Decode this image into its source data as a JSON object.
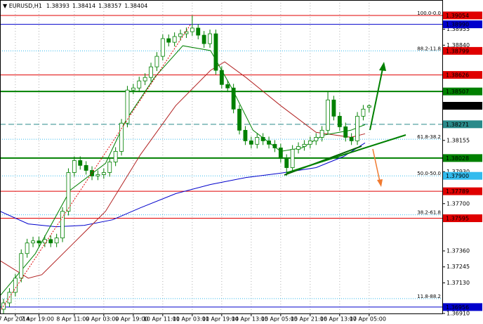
{
  "chart_data": {
    "type": "candlestick",
    "symbol": "EURUSD,H1",
    "xlim": [
      -0.6,
      74.4
    ],
    "ylim": [
      1.3691,
      1.39165
    ],
    "xticks": [
      {
        "value": 2,
        "label": "7 Apr 2014"
      },
      {
        "value": 6,
        "label": "7 Apr 19:00"
      },
      {
        "value": 12,
        "label": "8 Apr 11:00"
      },
      {
        "value": 17,
        "label": "9 Apr 03:00"
      },
      {
        "value": 22,
        "label": "9 Apr 19:00"
      },
      {
        "value": 27,
        "label": "10 Apr 11:00"
      },
      {
        "value": 32,
        "label": "11 Apr 03:00"
      },
      {
        "value": 37,
        "label": "11 Apr 19:00"
      },
      {
        "value": 42,
        "label": "14 Apr 13:00"
      },
      {
        "value": 47,
        "label": "15 Apr 05:00"
      },
      {
        "value": 52,
        "label": "15 Apr 21:00"
      },
      {
        "value": 57,
        "label": "16 Apr 13:00"
      },
      {
        "value": 62,
        "label": "17 Apr 05:00"
      }
    ],
    "yticks": [
      1.38955,
      {
        "value": 1.3884,
        "label": "1.38840"
      },
      1.38155,
      {
        "value": 1.3793,
        "label": "1.37930"
      },
      {
        "value": 1.377,
        "label": "1.37700"
      },
      {
        "value": 1.3736,
        "label": "1.37360"
      },
      1.37245,
      {
        "value": 1.3713,
        "label": "1.37130"
      },
      {
        "value": 1.3691,
        "label": "1.36910"
      }
    ],
    "grid": true,
    "up_color": "#ffffff",
    "down_color": "#008000",
    "wick_color": "#008000",
    "open": [
      1.3694,
      1.36986,
      1.37062,
      1.37164,
      1.37341,
      1.37417,
      1.37432,
      1.37417,
      1.37442,
      1.37417,
      1.37453,
      1.37645,
      1.37924,
      1.3801,
      1.37975,
      1.37939,
      1.37899,
      1.37909,
      1.37924,
      1.38,
      1.38076,
      1.38279,
      1.38517,
      1.38532,
      1.38583,
      1.38608,
      1.38684,
      1.3876,
      1.38887,
      1.38861,
      1.38902,
      1.38922,
      1.38937,
      1.38963,
      1.38912,
      1.38851,
      1.38922,
      1.38659,
      1.38557,
      1.38532,
      1.3838,
      1.38228,
      1.38152,
      1.38127,
      1.38177,
      1.38152,
      1.38127,
      1.38101,
      1.38025,
      1.37959,
      1.38091,
      1.38111,
      1.38127,
      1.38152,
      1.38177,
      1.38228,
      1.38446,
      1.38329,
      1.38253,
      1.38177,
      1.38152,
      1.38329,
      1.38393
    ],
    "high": [
      1.37016,
      1.37092,
      1.37194,
      1.37371,
      1.37447,
      1.37462,
      1.37462,
      1.37472,
      1.37472,
      1.37483,
      1.37675,
      1.37954,
      1.3804,
      1.3804,
      1.38005,
      1.37969,
      1.37939,
      1.37954,
      1.3803,
      1.38106,
      1.38309,
      1.38547,
      1.38562,
      1.38613,
      1.38638,
      1.38714,
      1.3879,
      1.38917,
      1.38917,
      1.38932,
      1.38952,
      1.38967,
      1.39054,
      1.38993,
      1.38942,
      1.38952,
      1.38952,
      1.38689,
      1.38587,
      1.38562,
      1.3841,
      1.38258,
      1.38182,
      1.38207,
      1.38207,
      1.38182,
      1.38157,
      1.38131,
      1.38055,
      1.38121,
      1.38141,
      1.38157,
      1.38182,
      1.38207,
      1.38258,
      1.38507,
      1.38476,
      1.38359,
      1.38283,
      1.38207,
      1.38359,
      1.3841,
      1.38414
    ],
    "low": [
      1.3691,
      1.36956,
      1.37032,
      1.37134,
      1.37311,
      1.37387,
      1.37387,
      1.37387,
      1.37387,
      1.37387,
      1.37423,
      1.37615,
      1.37894,
      1.37945,
      1.37909,
      1.37869,
      1.37869,
      1.37879,
      1.37894,
      1.3797,
      1.38046,
      1.38249,
      1.38487,
      1.38502,
      1.38553,
      1.38578,
      1.38654,
      1.3873,
      1.38831,
      1.38831,
      1.38872,
      1.38892,
      1.38907,
      1.38882,
      1.38821,
      1.38821,
      1.38629,
      1.38527,
      1.38502,
      1.3835,
      1.38198,
      1.38122,
      1.38097,
      1.38097,
      1.38122,
      1.38097,
      1.38071,
      1.37995,
      1.379,
      1.37929,
      1.38061,
      1.38081,
      1.38097,
      1.38122,
      1.38147,
      1.38198,
      1.38299,
      1.38223,
      1.38147,
      1.38122,
      1.38122,
      1.38299,
      1.38357
    ],
    "close": [
      1.36986,
      1.37062,
      1.37164,
      1.37341,
      1.37417,
      1.37432,
      1.37417,
      1.37442,
      1.37417,
      1.37453,
      1.37645,
      1.37924,
      1.3801,
      1.37975,
      1.37939,
      1.37899,
      1.37909,
      1.37924,
      1.38,
      1.38076,
      1.38279,
      1.38517,
      1.38532,
      1.38583,
      1.38608,
      1.38684,
      1.3876,
      1.38887,
      1.38861,
      1.38902,
      1.38922,
      1.38937,
      1.38963,
      1.38912,
      1.38851,
      1.38922,
      1.38659,
      1.38557,
      1.38532,
      1.3838,
      1.38228,
      1.38152,
      1.38127,
      1.38177,
      1.38152,
      1.38127,
      1.38101,
      1.38025,
      1.37959,
      1.38091,
      1.38111,
      1.38127,
      1.38152,
      1.38177,
      1.38228,
      1.38446,
      1.38329,
      1.38253,
      1.38177,
      1.38152,
      1.38329,
      1.3838,
      1.38404
    ],
    "overlays": [
      {
        "color": "#0000cc",
        "x": [
          -0.6,
          4.2,
          8.9,
          13.7,
          18.5,
          23.2,
          29.2,
          35.1,
          41.1,
          47.0,
          53.0,
          57.7,
          61.3
        ],
        "values": [
          1.37645,
          1.37554,
          1.37534,
          1.37544,
          1.37584,
          1.3767,
          1.37772,
          1.37838,
          1.37888,
          1.37919,
          1.37959,
          1.3804,
          1.38137
        ]
      },
      {
        "color": "#b22222",
        "x": [
          -0.6,
          4.2,
          6.5,
          11.3,
          17.3,
          23.2,
          29.2,
          35.1,
          37.5,
          41.1,
          47.0,
          53.0,
          58.9,
          61.3
        ],
        "values": [
          1.3729,
          1.37164,
          1.37189,
          1.37392,
          1.37645,
          1.38051,
          1.38405,
          1.38659,
          1.3872,
          1.38608,
          1.38405,
          1.38213,
          1.38177,
          1.38203
        ]
      },
      {
        "color": "#008000",
        "x": [
          -0.6,
          5.4,
          11.3,
          17.3,
          20.8,
          25.6,
          30.4,
          35.1,
          38.7,
          42.3,
          47.0,
          50.6,
          54.2,
          58.9,
          61.3
        ],
        "values": [
          1.37037,
          1.37341,
          1.37797,
          1.3799,
          1.38304,
          1.38608,
          1.38836,
          1.38801,
          1.38532,
          1.38228,
          1.38076,
          1.38101,
          1.38192,
          1.38228,
          1.38268
        ]
      }
    ],
    "fib_levels": [
      {
        "value": 1.39054,
        "label": "100.0-0.0"
      },
      {
        "value": 1.38799,
        "label": "88.2-11.8"
      },
      {
        "value": 1.38163,
        "label": "61.8-38.2"
      },
      {
        "value": 1.379,
        "label": "50.0-50.0"
      },
      {
        "value": 1.3762,
        "label": "38.2-61.8"
      },
      {
        "value": 1.37017,
        "label": "11.8-88.2"
      }
    ],
    "fib_color": "#33bbee",
    "levels": [
      {
        "value": 1.39054,
        "label": "1.39054",
        "color": "#e00000",
        "style": "solid"
      },
      {
        "value": 1.3899,
        "label": "1.38990",
        "color": "#0000cc",
        "style": "solid"
      },
      {
        "value": 1.38799,
        "label": "1.38799",
        "color": "#e00000",
        "style": "none"
      },
      {
        "value": 1.38626,
        "label": "1.38626",
        "color": "#e00000",
        "style": "solid"
      },
      {
        "value": 1.38507,
        "label": "1.38507",
        "color": "#008000",
        "style": "thick"
      },
      {
        "value": 1.38404,
        "label": "1.38404",
        "color": "#000000",
        "style": "none"
      },
      {
        "value": 1.38271,
        "label": "1.38271",
        "color": "#2a8a8a",
        "style": "dashed"
      },
      {
        "value": 1.38028,
        "label": "1.38028",
        "color": "#008000",
        "style": "thick"
      },
      {
        "value": 1.379,
        "label": "1.37900",
        "color": "#33bbee",
        "style": "none"
      },
      {
        "value": 1.37789,
        "label": "1.37789",
        "color": "#e00000",
        "style": "solid"
      },
      {
        "value": 1.37595,
        "label": "1.37595",
        "color": "#e00000",
        "style": "solid"
      },
      {
        "value": 1.36956,
        "label": "1.36956",
        "color": "#0000cc",
        "style": "solid"
      }
    ]
  }
}
